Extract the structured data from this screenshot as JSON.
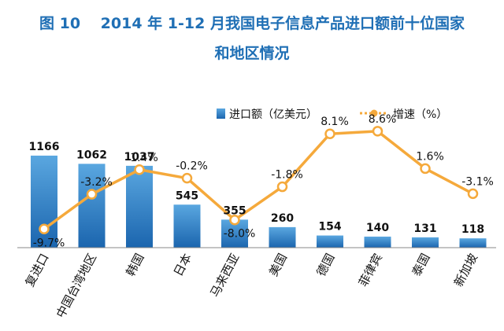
{
  "title_line1": "图 10　 2014 年 1-12 月我国电子信息产品进口额前十位国家",
  "title_line2": "和地区情况",
  "chart_data": {
    "type": "bar",
    "categories": [
      "复进口",
      "中国台湾地区",
      "韩国",
      "日本",
      "马来西亚",
      "美国",
      "德国",
      "菲律宾",
      "泰国",
      "新加坡"
    ],
    "series": [
      {
        "name": "进口额（亿美元）",
        "type": "bar",
        "values": [
          1166,
          1062,
          1037,
          545,
          355,
          260,
          154,
          140,
          131,
          118
        ],
        "labels": [
          "1166",
          "1062",
          "1037",
          "545",
          "355",
          "260",
          "154",
          "140",
          "131",
          "118"
        ]
      },
      {
        "name": "增速（%）",
        "type": "line",
        "values": [
          -9.7,
          -3.2,
          1.4,
          -0.2,
          -8.0,
          -1.8,
          8.1,
          8.6,
          1.6,
          -3.1
        ],
        "labels": [
          "-9.7%",
          "-3.2%",
          "1.4%",
          "-0.2%",
          "-8.0%",
          "-1.8%",
          "8.1%",
          "8.6%",
          "1.6%",
          "-3.1%"
        ]
      }
    ],
    "colors": {
      "bar_top": "#5aa7e0",
      "bar_bottom": "#1b65ae",
      "line": "#f5a93b",
      "marker_fill": "#ffffff",
      "axis": "#888888"
    },
    "legend_position": "top-right",
    "grid": false
  }
}
